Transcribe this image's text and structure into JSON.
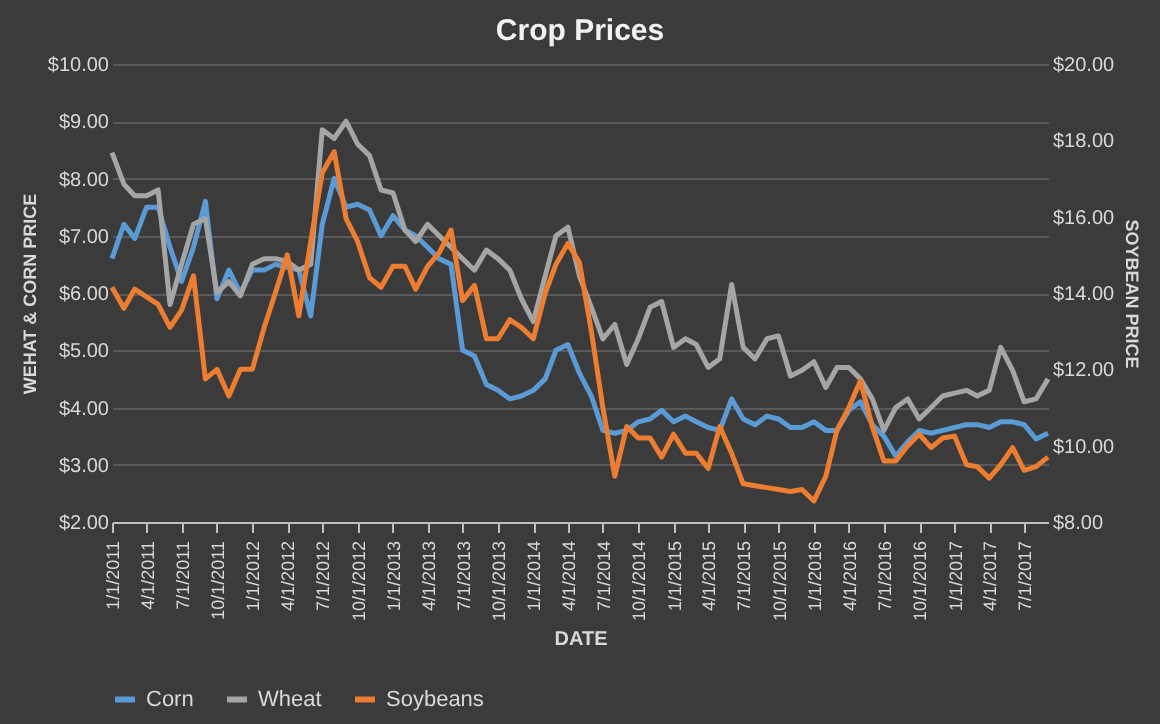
{
  "chart_data": {
    "type": "line",
    "title": "Crop Prices",
    "xlabel": "DATE",
    "ylabel": "WEHAT & CORN PRICE",
    "y2label": "SOYBEAN PRICE",
    "x": [
      "2011-01",
      "2011-02",
      "2011-03",
      "2011-04",
      "2011-05",
      "2011-06",
      "2011-07",
      "2011-08",
      "2011-09",
      "2011-10",
      "2011-11",
      "2011-12",
      "2012-01",
      "2012-02",
      "2012-03",
      "2012-04",
      "2012-05",
      "2012-06",
      "2012-07",
      "2012-08",
      "2012-09",
      "2012-10",
      "2012-11",
      "2012-12",
      "2013-01",
      "2013-02",
      "2013-03",
      "2013-04",
      "2013-05",
      "2013-06",
      "2013-07",
      "2013-08",
      "2013-09",
      "2013-10",
      "2013-11",
      "2013-12",
      "2014-01",
      "2014-02",
      "2014-03",
      "2014-04",
      "2014-05",
      "2014-06",
      "2014-07",
      "2014-08",
      "2014-09",
      "2014-10",
      "2014-11",
      "2014-12",
      "2015-01",
      "2015-02",
      "2015-03",
      "2015-04",
      "2015-05",
      "2015-06",
      "2015-07",
      "2015-08",
      "2015-09",
      "2015-10",
      "2015-11",
      "2015-12",
      "2016-01",
      "2016-02",
      "2016-03",
      "2016-04",
      "2016-05",
      "2016-06",
      "2016-07",
      "2016-08",
      "2016-09",
      "2016-10",
      "2016-11",
      "2016-12",
      "2017-01",
      "2017-02",
      "2017-03",
      "2017-04",
      "2017-05",
      "2017-06",
      "2017-07",
      "2017-08",
      "2017-09"
    ],
    "series": [
      {
        "name": "Corn",
        "color": "#5b9bd5",
        "values": [
          6.6,
          7.2,
          6.95,
          7.5,
          7.5,
          6.8,
          6.2,
          6.8,
          7.6,
          5.9,
          6.4,
          6.0,
          6.4,
          6.4,
          6.5,
          6.45,
          6.4,
          5.6,
          7.2,
          8.0,
          7.5,
          7.55,
          7.45,
          7.0,
          7.35,
          7.1,
          7.0,
          6.8,
          6.6,
          6.5,
          5.0,
          4.9,
          4.4,
          4.3,
          4.15,
          4.2,
          4.3,
          4.5,
          5.0,
          5.1,
          4.6,
          4.2,
          3.6,
          3.55,
          3.6,
          3.75,
          3.8,
          3.95,
          3.75,
          3.85,
          3.75,
          3.65,
          3.6,
          4.15,
          3.8,
          3.7,
          3.85,
          3.8,
          3.65,
          3.65,
          3.75,
          3.6,
          3.6,
          3.95,
          4.1,
          3.7,
          3.5,
          3.15,
          3.4,
          3.6,
          3.55,
          3.6,
          3.65,
          3.7,
          3.7,
          3.65,
          3.75,
          3.75,
          3.7,
          3.45,
          3.55
        ]
      },
      {
        "name": "Wheat",
        "color": "#a5a5a5",
        "values": [
          8.45,
          7.9,
          7.7,
          7.7,
          7.8,
          5.8,
          6.5,
          7.2,
          7.3,
          6.0,
          6.2,
          5.95,
          6.5,
          6.6,
          6.6,
          6.55,
          6.4,
          6.5,
          8.85,
          8.7,
          9.0,
          8.6,
          8.4,
          7.8,
          7.75,
          7.1,
          6.9,
          7.2,
          7.0,
          6.8,
          6.6,
          6.4,
          6.75,
          6.6,
          6.4,
          5.9,
          5.5,
          6.3,
          7.0,
          7.15,
          6.3,
          5.75,
          5.2,
          5.45,
          4.75,
          5.2,
          5.75,
          5.85,
          5.05,
          5.2,
          5.1,
          4.7,
          4.85,
          6.15,
          5.05,
          4.85,
          5.2,
          5.25,
          4.55,
          4.65,
          4.8,
          4.35,
          4.7,
          4.7,
          4.5,
          4.15,
          3.6,
          4.0,
          4.15,
          3.8,
          4.0,
          4.2,
          4.25,
          4.3,
          4.2,
          4.3,
          5.05,
          4.65,
          4.1,
          4.15,
          4.5
        ]
      },
      {
        "name": "Soybeans",
        "color": "#ed7d31",
        "axis": "y2",
        "values": [
          14.15,
          13.6,
          14.1,
          13.9,
          13.7,
          13.1,
          13.55,
          14.45,
          11.75,
          12.0,
          11.3,
          12.0,
          12.0,
          13.1,
          14.0,
          15.0,
          13.4,
          15.35,
          17.15,
          17.7,
          15.95,
          15.35,
          14.4,
          14.15,
          14.7,
          14.7,
          14.1,
          14.7,
          15.05,
          15.65,
          13.8,
          14.2,
          12.8,
          12.8,
          13.3,
          13.1,
          12.8,
          14.0,
          14.75,
          15.3,
          14.8,
          13.0,
          11.0,
          9.2,
          10.5,
          10.2,
          10.2,
          9.7,
          10.3,
          9.8,
          9.8,
          9.4,
          10.5,
          9.8,
          9.0,
          8.95,
          8.9,
          8.85,
          8.8,
          8.85,
          8.55,
          9.2,
          10.4,
          11.0,
          11.7,
          10.5,
          9.6,
          9.6,
          10.0,
          10.3,
          9.95,
          10.2,
          10.25,
          9.5,
          9.45,
          9.15,
          9.5,
          9.95,
          9.35,
          9.45,
          9.7
        ]
      }
    ],
    "xlim": [
      "2011-01",
      "2017-09"
    ],
    "xticks": [
      {
        "value": "2011-01",
        "label": "1/1/2011"
      },
      {
        "value": "2011-04",
        "label": "4/1/2011"
      },
      {
        "value": "2011-07",
        "label": "7/1/2011"
      },
      {
        "value": "2011-10",
        "label": "10/1/2011"
      },
      {
        "value": "2012-01",
        "label": "1/1/2012"
      },
      {
        "value": "2012-04",
        "label": "4/1/2012"
      },
      {
        "value": "2012-07",
        "label": "7/1/2012"
      },
      {
        "value": "2012-10",
        "label": "10/1/2012"
      },
      {
        "value": "2013-01",
        "label": "1/1/2013"
      },
      {
        "value": "2013-04",
        "label": "4/1/2013"
      },
      {
        "value": "2013-07",
        "label": "7/1/2013"
      },
      {
        "value": "2013-10",
        "label": "10/1/2013"
      },
      {
        "value": "2014-01",
        "label": "1/1/2014"
      },
      {
        "value": "2014-04",
        "label": "4/1/2014"
      },
      {
        "value": "2014-07",
        "label": "7/1/2014"
      },
      {
        "value": "2014-10",
        "label": "10/1/2014"
      },
      {
        "value": "2015-01",
        "label": "1/1/2015"
      },
      {
        "value": "2015-04",
        "label": "4/1/2015"
      },
      {
        "value": "2015-07",
        "label": "7/1/2015"
      },
      {
        "value": "2015-10",
        "label": "10/1/2015"
      },
      {
        "value": "2016-01",
        "label": "1/1/2016"
      },
      {
        "value": "2016-04",
        "label": "4/1/2016"
      },
      {
        "value": "2016-07",
        "label": "7/1/2016"
      },
      {
        "value": "2016-10",
        "label": "10/1/2016"
      },
      {
        "value": "2017-01",
        "label": "1/1/2017"
      },
      {
        "value": "2017-04",
        "label": "4/1/2017"
      },
      {
        "value": "2017-07",
        "label": "7/1/2017"
      }
    ],
    "ylim": [
      2,
      10
    ],
    "yticks": [
      {
        "value": 2,
        "label": "$2.00"
      },
      {
        "value": 3,
        "label": "$3.00"
      },
      {
        "value": 4,
        "label": "$4.00"
      },
      {
        "value": 5,
        "label": "$5.00"
      },
      {
        "value": 6,
        "label": "$6.00"
      },
      {
        "value": 7,
        "label": "$7.00"
      },
      {
        "value": 8,
        "label": "$8.00"
      },
      {
        "value": 9,
        "label": "$9.00"
      },
      {
        "value": 10,
        "label": "$10.00"
      }
    ],
    "y2lim": [
      8,
      20
    ],
    "y2ticks": [
      {
        "value": 8,
        "label": "$8.00"
      },
      {
        "value": 10,
        "label": "$10.00"
      },
      {
        "value": 12,
        "label": "$12.00"
      },
      {
        "value": 14,
        "label": "$14.00"
      },
      {
        "value": 16,
        "label": "$16.00"
      },
      {
        "value": 18,
        "label": "$18.00"
      },
      {
        "value": 20,
        "label": "$20.00"
      }
    ],
    "grid": "y",
    "legend": "bottom",
    "marker": "none",
    "line_style": "solid"
  }
}
